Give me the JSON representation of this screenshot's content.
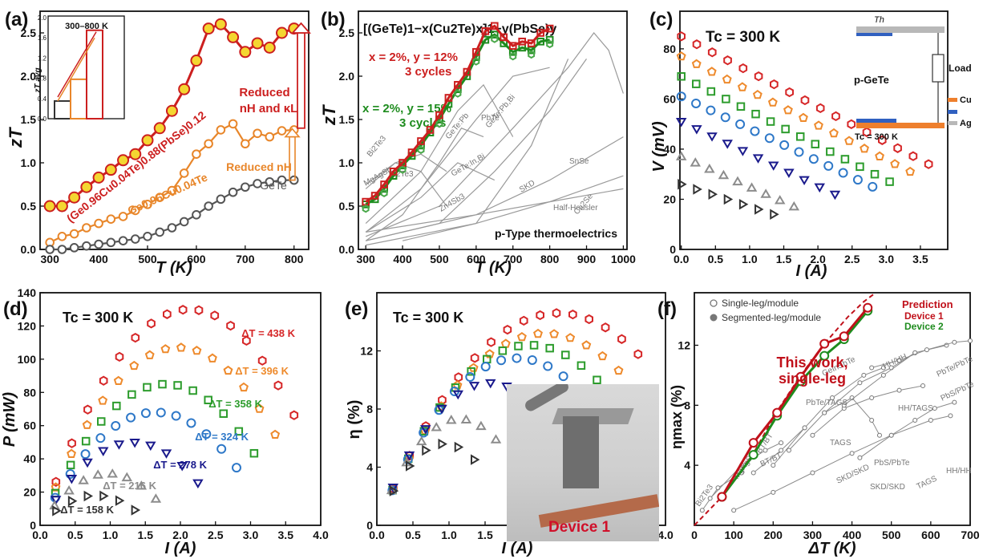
{
  "chart_data": [
    {
      "panel_label": "(a)",
      "type": "line",
      "xlabel": "T (K)",
      "ylabel": "zT",
      "xlim": [
        280,
        830
      ],
      "ylim": [
        0,
        2.75
      ],
      "xticks": [
        300,
        400,
        500,
        600,
        700,
        800
      ],
      "yticks": [
        0.0,
        0.5,
        1.0,
        1.5,
        2.0,
        2.5
      ],
      "series": [
        {
          "name": "(Ge0.96Cu0.04Te)0.88(PbSe)0.12",
          "color": "#cc1f1f",
          "x": [
            300,
            325,
            350,
            375,
            400,
            425,
            450,
            475,
            500,
            525,
            550,
            575,
            600,
            625,
            650,
            675,
            700,
            725,
            750,
            775,
            800
          ],
          "y": [
            0.5,
            0.5,
            0.6,
            0.72,
            0.83,
            0.92,
            1.03,
            1.1,
            1.26,
            1.4,
            1.6,
            1.85,
            2.18,
            2.55,
            2.6,
            2.45,
            2.28,
            2.38,
            2.33,
            2.5,
            2.55
          ]
        },
        {
          "name": "Ge0.96Cu0.04Te",
          "color": "#e8862a",
          "x": [
            300,
            325,
            350,
            375,
            400,
            425,
            450,
            475,
            500,
            525,
            550,
            575,
            600,
            625,
            650,
            675,
            700,
            725,
            750,
            775,
            800
          ],
          "y": [
            0.08,
            0.15,
            0.18,
            0.25,
            0.3,
            0.35,
            0.38,
            0.45,
            0.52,
            0.6,
            0.68,
            0.88,
            1.1,
            1.22,
            1.38,
            1.45,
            1.22,
            1.34,
            1.3,
            1.37,
            1.38
          ]
        },
        {
          "name": "GeTe",
          "color": "#555555",
          "x": [
            300,
            325,
            350,
            375,
            400,
            425,
            450,
            475,
            500,
            525,
            550,
            575,
            600,
            625,
            650,
            675,
            700,
            725,
            750,
            775,
            800
          ],
          "y": [
            0.0,
            0.0,
            0.02,
            0.04,
            0.06,
            0.08,
            0.1,
            0.12,
            0.15,
            0.2,
            0.25,
            0.32,
            0.4,
            0.5,
            0.58,
            0.66,
            0.72,
            0.76,
            0.78,
            0.8,
            0.8
          ]
        }
      ],
      "annotations": [
        "Reduced",
        "nH and κL",
        "Reduced nH"
      ],
      "inset": {
        "title": "300–800 K",
        "ylabel": "zT avg",
        "yticks": [
          "0.0",
          "0.4",
          "0.8",
          "1.2",
          "1.6",
          "2.0"
        ],
        "values": [
          0.35,
          0.78,
          1.75
        ],
        "ylim": [
          0,
          2.0
        ],
        "colors": [
          "#333333",
          "#e8862a",
          "#cc1f1f"
        ]
      }
    },
    {
      "panel_label": "(b)",
      "type": "line",
      "title": "[(GeTe)1−x(Cu2Te)x]1−y(PbSe)y",
      "xlabel": "T (K)",
      "ylabel": "zT",
      "xlim": [
        280,
        1010
      ],
      "ylim": [
        0,
        2.75
      ],
      "xticks": [
        300,
        400,
        500,
        600,
        700,
        800,
        900,
        1000
      ],
      "yticks": [
        0.0,
        0.5,
        1.0,
        1.5,
        2.0,
        2.5
      ],
      "legend_text": [
        "x = 2%, y = 12%",
        "3 cycles",
        "x = 2%, y = 15%",
        "3 cycles",
        "p-Type thermoelectrics"
      ],
      "legend_colors": [
        "#cc1f1f",
        "#1e8c1e"
      ],
      "red_x": [
        300,
        325,
        350,
        375,
        400,
        425,
        450,
        475,
        500,
        525,
        550,
        575,
        600,
        625,
        650,
        675,
        700,
        725,
        750,
        775,
        800
      ],
      "red_y": [
        0.55,
        0.62,
        0.75,
        0.9,
        1.0,
        1.12,
        1.25,
        1.38,
        1.55,
        1.75,
        1.9,
        2.05,
        2.28,
        2.52,
        2.58,
        2.45,
        2.35,
        2.4,
        2.38,
        2.5,
        2.55
      ],
      "green_x": [
        300,
        325,
        350,
        375,
        400,
        425,
        450,
        475,
        500,
        525,
        550,
        575,
        600,
        625,
        650,
        675,
        700,
        725,
        750,
        775,
        800
      ],
      "green_y": [
        0.52,
        0.58,
        0.7,
        0.85,
        0.97,
        1.08,
        1.2,
        1.35,
        1.5,
        1.68,
        1.85,
        2.0,
        2.22,
        2.42,
        2.48,
        2.38,
        2.28,
        2.33,
        2.3,
        2.4,
        2.42
      ],
      "ref_labels": [
        "Bi2Te3",
        "MgAgSb",
        "Bi2Te3",
        "GeTe:Pb",
        "GeTe:In,Bi",
        "PbTe",
        "GeTe:Pb,Bi",
        "Zn4Sb3",
        "SnSe",
        "Cu2Se",
        "SKD",
        "Half-Heusler"
      ]
    },
    {
      "panel_label": "(c)",
      "type": "scatter",
      "xlabel": "I (A)",
      "ylabel": "V (mV)",
      "xlim": [
        -0.02,
        3.9
      ],
      "ylim": [
        0,
        95
      ],
      "xticks": [
        0.0,
        0.5,
        1.0,
        1.5,
        2.0,
        2.5,
        3.0,
        3.5
      ],
      "yticks": [
        0,
        20,
        40,
        60,
        80
      ],
      "annotation": "Tc = 300 K",
      "series": [
        {
          "dT": 438,
          "color": "#d62728",
          "marker": "hexagon",
          "i0": 0,
          "i1": 3.62,
          "v0": 85,
          "v1": 34
        },
        {
          "dT": 396,
          "color": "#ee8a2c",
          "marker": "pentagon",
          "i0": 0,
          "i1": 3.35,
          "v0": 77,
          "v1": 31
        },
        {
          "dT": 358,
          "color": "#2c9c2c",
          "marker": "square",
          "i0": 0,
          "i1": 3.05,
          "v0": 69,
          "v1": 27
        },
        {
          "dT": 324,
          "color": "#2e78c8",
          "marker": "circle",
          "i0": 0,
          "i1": 2.8,
          "v0": 61,
          "v1": 25
        },
        {
          "dT": 278,
          "color": "#1a1a8c",
          "marker": "triangle-down",
          "i0": 0,
          "i1": 2.25,
          "v0": 51,
          "v1": 22
        },
        {
          "dT": 216,
          "color": "#8c8c8c",
          "marker": "triangle-up",
          "i0": 0,
          "i1": 1.65,
          "v0": 37,
          "v1": 17
        },
        {
          "dT": 158,
          "color": "#333333",
          "marker": "triangle-right",
          "i0": 0,
          "i1": 1.35,
          "v0": 26,
          "v1": 14
        }
      ],
      "schematic": {
        "hot_label": "Th",
        "leg_label": "p-GeTe",
        "load_label": "Load",
        "cold_label": "Tc = 300 K",
        "legend": [
          "Cu",
          "Ag"
        ],
        "colors": [
          "#ee7f2d",
          "#3060c0",
          "#b8b8b8"
        ]
      }
    },
    {
      "panel_label": "(d)",
      "type": "scatter",
      "xlabel": "I (A)",
      "ylabel": "P (mW)",
      "xlim": [
        0,
        4.0
      ],
      "ylim": [
        0,
        140
      ],
      "xticks": [
        0.0,
        0.5,
        1.0,
        1.5,
        2.0,
        2.5,
        3.0,
        3.5,
        4.0
      ],
      "yticks": [
        0,
        20,
        40,
        60,
        80,
        100,
        120,
        140
      ],
      "annotation": "Tc = 300 K",
      "series": [
        {
          "label": "ΔT = 438 K",
          "color": "#d62728",
          "pmax": 130,
          "imax": 3.62
        },
        {
          "label": "ΔT = 396 K",
          "color": "#ee8a2c",
          "pmax": 107,
          "imax": 3.35
        },
        {
          "label": "ΔT = 358 K",
          "color": "#2c9c2c",
          "pmax": 85,
          "imax": 3.05
        },
        {
          "label": "ΔT = 324 K",
          "color": "#2e78c8",
          "pmax": 68,
          "imax": 2.8
        },
        {
          "label": "ΔT = 278 K",
          "color": "#1a1a8c",
          "pmax": 50,
          "imax": 2.25
        },
        {
          "label": "ΔT = 216 K",
          "color": "#8c8c8c",
          "pmax": 31,
          "imax": 1.65
        },
        {
          "label": "ΔT = 158 K",
          "color": "#333333",
          "pmax": 18,
          "imax": 1.35
        }
      ]
    },
    {
      "panel_label": "(e)",
      "type": "scatter",
      "xlabel": "I (A)",
      "ylabel": "η (%)",
      "xlim": [
        0,
        4.0
      ],
      "ylim": [
        0,
        16
      ],
      "xticks": [
        0.0,
        0.5,
        1.0,
        1.5,
        2.0,
        2.5,
        3.0,
        3.5,
        4.0
      ],
      "yticks": [
        0,
        4,
        8,
        12
      ],
      "annotation": "Tc = 300 K",
      "inset_label": "Device 1",
      "series": [
        {
          "color": "#d62728",
          "etamax": 14.6,
          "imax": 3.62
        },
        {
          "color": "#ee8a2c",
          "etamax": 13.2,
          "imax": 3.35
        },
        {
          "color": "#2c9c2c",
          "etamax": 12.4,
          "imax": 3.05
        },
        {
          "color": "#2e78c8",
          "etamax": 11.5,
          "imax": 2.8
        },
        {
          "color": "#1a1a8c",
          "etamax": 9.8,
          "imax": 2.25
        },
        {
          "color": "#8c8c8c",
          "etamax": 7.3,
          "imax": 1.65
        },
        {
          "color": "#333333",
          "etamax": 5.6,
          "imax": 1.35
        }
      ]
    },
    {
      "panel_label": "(f)",
      "type": "line",
      "xlabel": "ΔT (K)",
      "ylabel": "ηmax (%)",
      "xlim": [
        0,
        700
      ],
      "ylim": [
        0,
        15.5
      ],
      "xticks": [
        0,
        100,
        200,
        300,
        400,
        500,
        600,
        700
      ],
      "yticks": [
        4,
        8,
        12
      ],
      "legend": [
        "Single-leg/module",
        "Segmented-leg/module"
      ],
      "annotations": [
        "This work,",
        "single-leg",
        "Prediction",
        "Device 1",
        "Device 2"
      ],
      "ref_labels": [
        "Bi2Te3",
        "MgAgSb",
        "BT/BT",
        "BT/BT",
        "PbTe/TAGS",
        "GeInSbTe",
        "TAGS",
        "SKD/SKD",
        "PbS/PbTe",
        "HH/HH",
        "HH/TAGS",
        "TAGS",
        "SKD/SKD",
        "PbS/PbTe",
        "HH/HH",
        "PbTe/PbTe"
      ],
      "prediction": {
        "x": [
          0,
          70,
          150,
          210,
          270,
          330,
          390,
          430,
          460
        ],
        "y": [
          0,
          1.9,
          4.8,
          7.6,
          10.0,
          12.1,
          13.9,
          14.9,
          15.5
        ],
        "color": "#c0101a"
      },
      "device1": {
        "x": [
          70,
          150,
          210,
          270,
          330,
          380,
          440
        ],
        "y": [
          1.9,
          5.5,
          7.5,
          9.9,
          12.1,
          12.6,
          14.5
        ],
        "color": "#c0101a"
      },
      "device2": {
        "x": [
          70,
          150,
          210,
          270,
          330,
          380,
          440
        ],
        "y": [
          1.9,
          4.7,
          7.3,
          9.6,
          11.3,
          12.4,
          14.3
        ],
        "color": "#1e8c1e"
      }
    }
  ]
}
